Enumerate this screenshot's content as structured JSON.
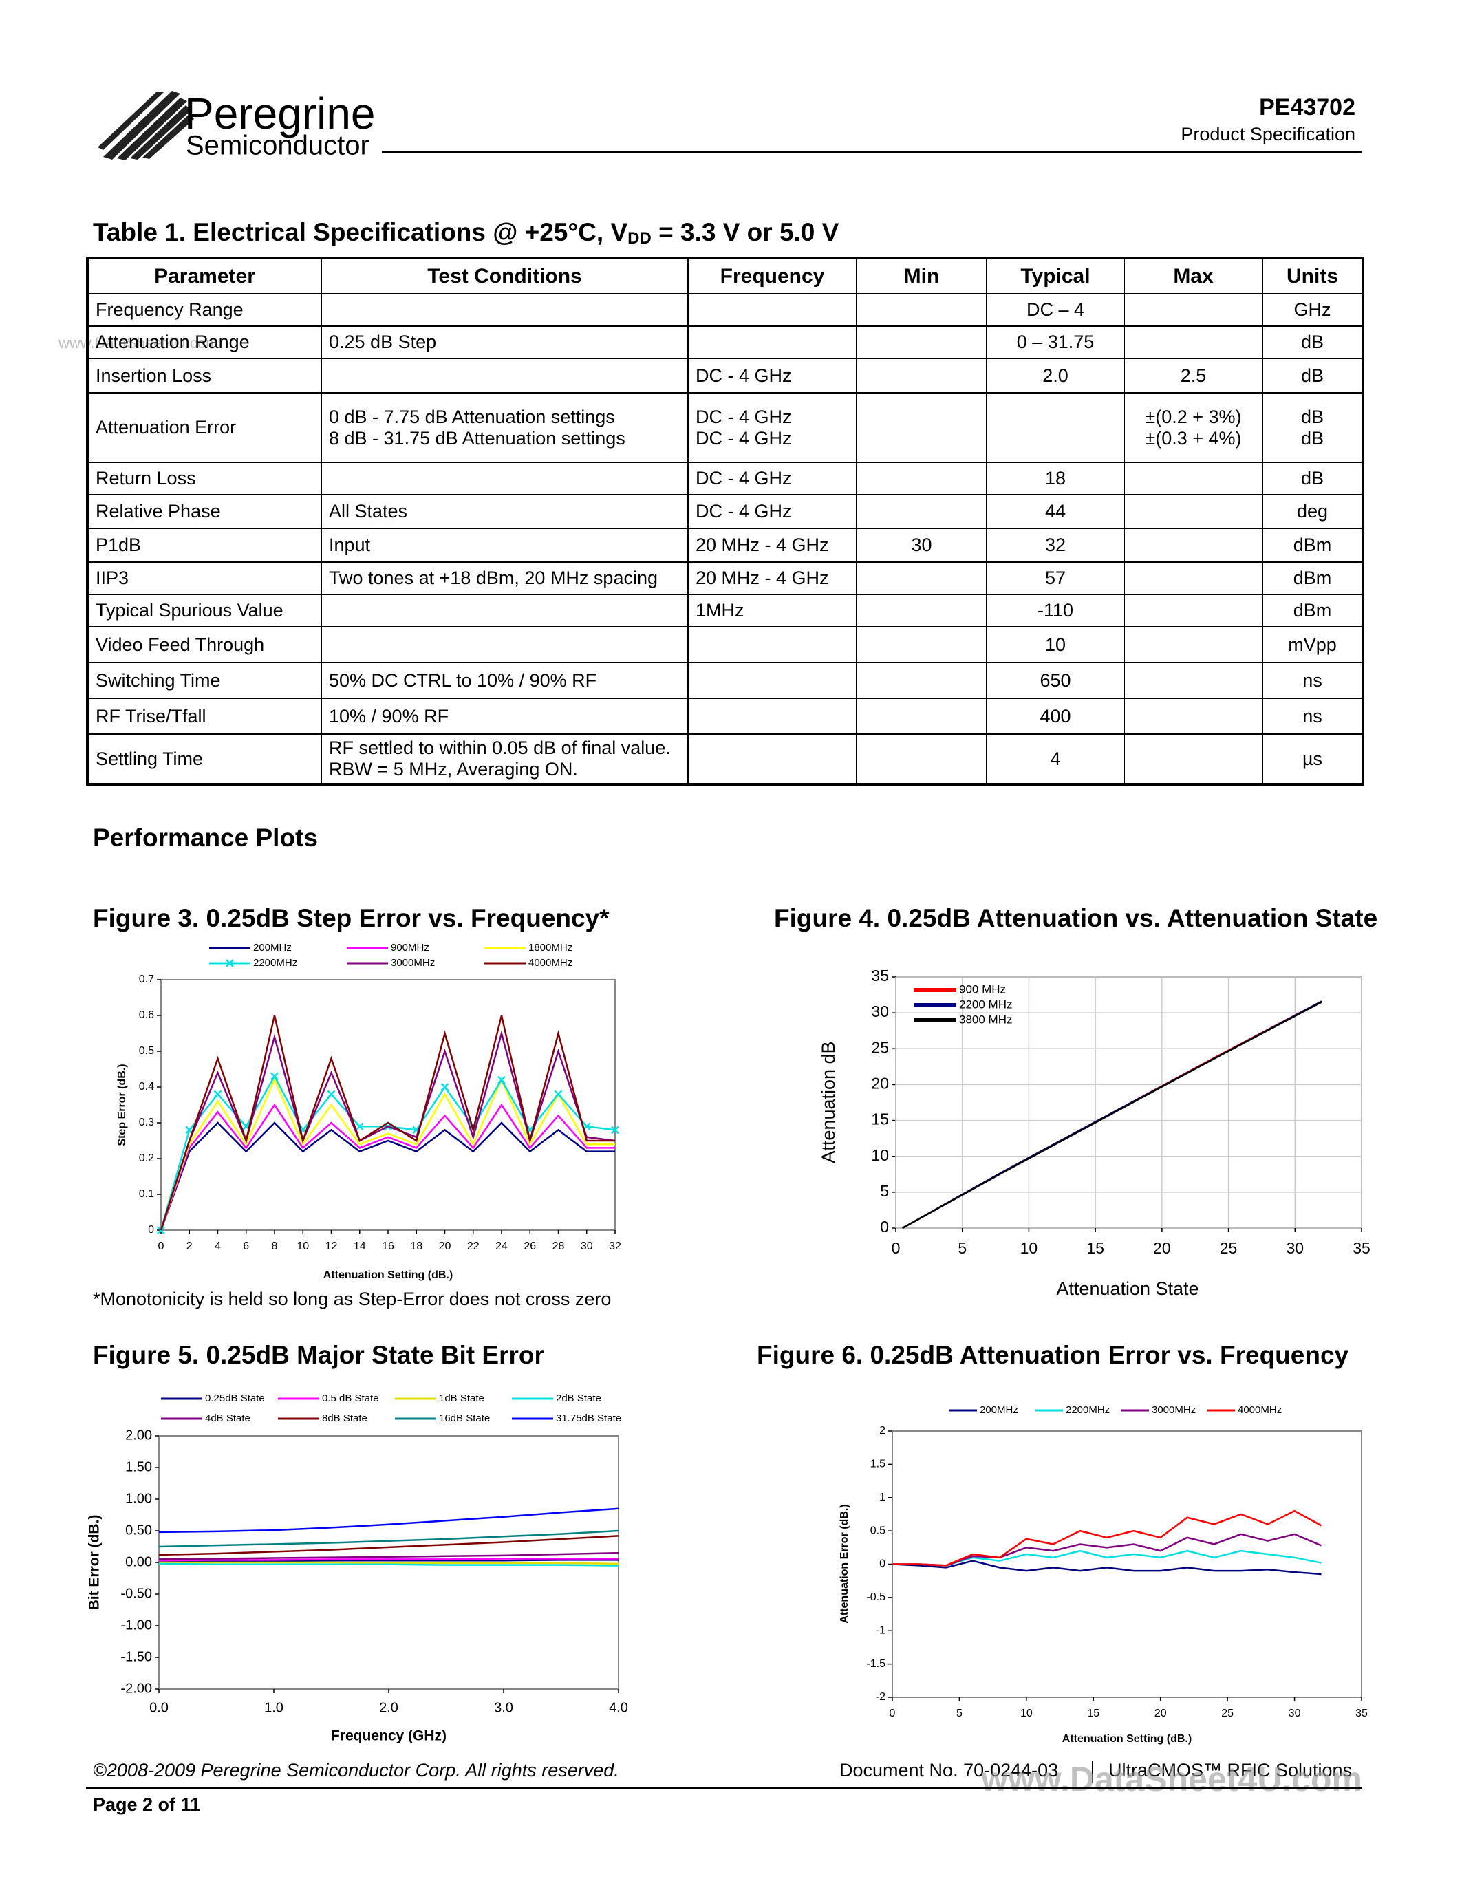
{
  "header": {
    "company": "Peregrine",
    "division": "Semiconductor",
    "part": "PE43702",
    "doc_type": "Product Specification"
  },
  "watermarks": [
    "www.DataSheet4U.com",
    "www.DataSheet4U.com"
  ],
  "table": {
    "title": "Table 1. Electrical Specifications @ +25°C, V",
    "title_sub": "DD",
    "title_end": " = 3.3 V or 5.0 V",
    "header": [
      "Parameter",
      "Test Conditions",
      "Frequency",
      "Min",
      "Typical",
      "Max",
      "Units"
    ],
    "rows": [
      [
        "Frequency Range",
        null,
        null,
        null,
        "DC – 4",
        null,
        "GHz"
      ],
      [
        "Attenuation Range",
        "0.25 dB Step",
        null,
        null,
        "0 – 31.75",
        null,
        "dB"
      ],
      [
        "Insertion Loss",
        null,
        "DC - 4 GHz",
        null,
        "2.0",
        "2.5",
        "dB"
      ],
      [
        "Attenuation Error",
        "0 dB - 7.75 dB Attenuation settings\n8 dB - 31.75 dB Attenuation settings",
        "DC - 4 GHz\nDC - 4 GHz",
        null,
        null,
        "±(0.2 + 3%)\n±(0.3 + 4%)",
        "dB\ndB"
      ],
      [
        "Return Loss",
        null,
        "DC - 4 GHz",
        null,
        "18",
        null,
        "dB"
      ],
      [
        "Relative Phase",
        "All States",
        "DC - 4 GHz",
        null,
        "44",
        null,
        "deg"
      ],
      [
        "P1dB",
        "Input",
        "20 MHz - 4 GHz",
        "30",
        "32",
        null,
        "dBm"
      ],
      [
        "IIP3",
        "Two tones at +18 dBm, 20 MHz spacing",
        "20 MHz - 4 GHz",
        null,
        "57",
        null,
        "dBm"
      ],
      [
        "Typical Spurious Value",
        null,
        "1MHz",
        null,
        "-110",
        null,
        "dBm"
      ],
      [
        "Video Feed Through",
        null,
        null,
        null,
        "10",
        null,
        "mVpp"
      ],
      [
        "Switching Time",
        "50% DC CTRL to 10% / 90% RF",
        null,
        null,
        "650",
        null,
        "ns"
      ],
      [
        "RF Trise/Tfall",
        "10% / 90% RF",
        null,
        null,
        "400",
        null,
        "ns"
      ],
      [
        "Settling Time",
        "RF settled to within 0.05 dB of final value.\nRBW = 5 MHz, Averaging ON.",
        null,
        null,
        "4",
        null,
        "µs"
      ]
    ]
  },
  "section": "Performance Plots",
  "chart_data": [
    {
      "type": "line",
      "title": "Figure 3. 0.25dB Step Error vs. Frequency*",
      "note": "*Monotonicity is held so long as Step-Error does not cross zero",
      "xlabel": "Attenuation Setting (dB.)",
      "ylabel": "Step Error (dB.)",
      "legend": "top",
      "x": [
        0,
        2,
        4,
        6,
        8,
        10,
        12,
        14,
        16,
        18,
        20,
        22,
        24,
        26,
        28,
        30,
        32
      ],
      "xlim": [
        0,
        32
      ],
      "ylim": [
        0,
        0.7
      ],
      "xticks": [
        0,
        2,
        4,
        6,
        8,
        10,
        12,
        14,
        16,
        18,
        20,
        22,
        24,
        26,
        28,
        30,
        32
      ],
      "yticks": [
        0,
        0.1,
        0.2,
        0.3,
        0.4,
        0.5,
        0.6,
        0.7
      ],
      "series": [
        {
          "name": "200MHz",
          "color": "#000080",
          "values": [
            0,
            0.22,
            0.3,
            0.22,
            0.3,
            0.22,
            0.28,
            0.22,
            0.25,
            0.22,
            0.28,
            0.22,
            0.3,
            0.22,
            0.28,
            0.22,
            0.22
          ]
        },
        {
          "name": "900MHz",
          "color": "#ff00ff",
          "values": [
            0,
            0.23,
            0.33,
            0.23,
            0.35,
            0.23,
            0.3,
            0.23,
            0.26,
            0.23,
            0.32,
            0.23,
            0.35,
            0.23,
            0.32,
            0.23,
            0.23
          ]
        },
        {
          "name": "1800MHz",
          "color": "#ffff00",
          "values": [
            0,
            0.24,
            0.36,
            0.24,
            0.42,
            0.24,
            0.35,
            0.24,
            0.27,
            0.24,
            0.38,
            0.24,
            0.42,
            0.24,
            0.38,
            0.24,
            0.24
          ]
        },
        {
          "name": "2200MHz",
          "color": "#00e0e0",
          "marker": "x",
          "values": [
            0,
            0.28,
            0.38,
            0.29,
            0.43,
            0.28,
            0.38,
            0.29,
            0.29,
            0.28,
            0.4,
            0.29,
            0.42,
            0.28,
            0.38,
            0.29,
            0.28
          ]
        },
        {
          "name": "3000MHz",
          "color": "#800080",
          "values": [
            0,
            0.25,
            0.44,
            0.25,
            0.54,
            0.25,
            0.44,
            0.25,
            0.29,
            0.26,
            0.5,
            0.26,
            0.55,
            0.25,
            0.5,
            0.26,
            0.25
          ]
        },
        {
          "name": "4000MHz",
          "color": "#800000",
          "values": [
            0,
            0.25,
            0.48,
            0.25,
            0.6,
            0.25,
            0.48,
            0.25,
            0.3,
            0.25,
            0.55,
            0.28,
            0.6,
            0.25,
            0.55,
            0.25,
            0.25
          ]
        }
      ]
    },
    {
      "type": "line",
      "title": "Figure 4. 0.25dB Attenuation vs. Attenuation State",
      "xlabel": "Attenuation  State",
      "ylabel": "Attenuation  dB",
      "legend": "upper left",
      "grid": true,
      "x": [
        0.5,
        8,
        16,
        24,
        32
      ],
      "xlim": [
        0,
        35
      ],
      "ylim": [
        0,
        35
      ],
      "xticks": [
        0,
        5,
        10,
        15,
        20,
        25,
        30,
        35
      ],
      "yticks": [
        0,
        5,
        10,
        15,
        20,
        25,
        30,
        35
      ],
      "series": [
        {
          "name": "900 MHz",
          "color": "#ff0000",
          "values": [
            0,
            7.8,
            15.8,
            23.8,
            31.6
          ]
        },
        {
          "name": "2200 MHz",
          "color": "#000080",
          "values": [
            0,
            7.8,
            15.8,
            23.7,
            31.6
          ]
        },
        {
          "name": "3800 MHz",
          "color": "#000000",
          "values": [
            0,
            7.7,
            15.7,
            23.7,
            31.5
          ]
        }
      ]
    },
    {
      "type": "line",
      "title": "Figure 5. 0.25dB Major State Bit Error",
      "xlabel": "Frequency (GHz)",
      "ylabel": "Bit Error (dB.)",
      "legend": "top",
      "x": [
        0,
        0.5,
        1,
        1.5,
        2,
        2.5,
        3,
        3.5,
        4
      ],
      "xlim": [
        0,
        4
      ],
      "ylim": [
        -2,
        2
      ],
      "xticks": [
        {
          "value": 0,
          "label": "0.0"
        },
        {
          "value": 1,
          "label": "1.0"
        },
        {
          "value": 2,
          "label": "2.0"
        },
        {
          "value": 3,
          "label": "3.0"
        },
        {
          "value": 4,
          "label": "4.0"
        }
      ],
      "yticks": [
        {
          "value": 2,
          "label": "2.00"
        },
        {
          "value": 1.5,
          "label": "1.50"
        },
        {
          "value": 1,
          "label": "1.00"
        },
        {
          "value": 0.5,
          "label": "0.50"
        },
        {
          "value": 0,
          "label": "0.00"
        },
        {
          "value": -0.5,
          "label": "-0.50"
        },
        {
          "value": -1,
          "label": "-1.00"
        },
        {
          "value": -1.5,
          "label": "-1.50"
        },
        {
          "value": -2,
          "label": "-2.00"
        }
      ],
      "series": [
        {
          "name": "0.25dB State",
          "color": "#000080",
          "values": [
            0.02,
            0.02,
            0.02,
            0.03,
            0.03,
            0.03,
            0.03,
            0.04,
            0.04
          ]
        },
        {
          "name": "0.5 dB State",
          "color": "#ff00ff",
          "values": [
            0.03,
            0.04,
            0.04,
            0.05,
            0.05,
            0.05,
            0.06,
            0.06,
            0.06
          ]
        },
        {
          "name": "1dB State",
          "color": "#e0e000",
          "values": [
            0,
            0,
            0,
            0,
            -0.01,
            -0.01,
            -0.01,
            -0.01,
            -0.02
          ]
        },
        {
          "name": "2dB State",
          "color": "#00e0e0",
          "values": [
            -0.02,
            -0.03,
            -0.03,
            -0.03,
            -0.03,
            -0.04,
            -0.04,
            -0.04,
            -0.05
          ]
        },
        {
          "name": "4dB State",
          "color": "#800080",
          "values": [
            0.05,
            0.06,
            0.07,
            0.08,
            0.09,
            0.1,
            0.11,
            0.13,
            0.15
          ]
        },
        {
          "name": "8dB State",
          "color": "#800000",
          "values": [
            0.12,
            0.14,
            0.17,
            0.2,
            0.24,
            0.28,
            0.32,
            0.37,
            0.42
          ]
        },
        {
          "name": "16dB State",
          "color": "#008080",
          "values": [
            0.25,
            0.27,
            0.29,
            0.31,
            0.34,
            0.37,
            0.41,
            0.45,
            0.5
          ]
        },
        {
          "name": "31.75dB State",
          "color": "#0000ff",
          "values": [
            0.48,
            0.49,
            0.51,
            0.55,
            0.6,
            0.66,
            0.72,
            0.79,
            0.85
          ]
        }
      ]
    },
    {
      "type": "line",
      "title": "Figure 6. 0.25dB Attenuation Error vs. Frequency",
      "xlabel": "Attenuation Setting (dB.)",
      "ylabel": "Attenuation Error (dB.)",
      "legend": "top",
      "x": [
        0,
        2,
        4,
        6,
        8,
        10,
        12,
        14,
        16,
        18,
        20,
        22,
        24,
        26,
        28,
        30,
        32
      ],
      "xlim": [
        0,
        35
      ],
      "ylim": [
        -2,
        2
      ],
      "xticks": [
        0,
        5,
        10,
        15,
        20,
        25,
        30,
        35
      ],
      "yticks": [
        2,
        1.5,
        1,
        0.5,
        0,
        -0.5,
        -1,
        -1.5,
        -2
      ],
      "series": [
        {
          "name": "200MHz",
          "color": "#000080",
          "values": [
            0,
            -0.02,
            -0.05,
            0.05,
            -0.05,
            -0.1,
            -0.05,
            -0.1,
            -0.05,
            -0.1,
            -0.1,
            -0.05,
            -0.1,
            -0.1,
            -0.08,
            -0.12,
            -0.15
          ]
        },
        {
          "name": "2200MHz",
          "color": "#00e0e0",
          "values": [
            0,
            0,
            -0.02,
            0.1,
            0.05,
            0.15,
            0.1,
            0.2,
            0.1,
            0.15,
            0.1,
            0.2,
            0.1,
            0.2,
            0.15,
            0.1,
            0.02
          ]
        },
        {
          "name": "3000MHz",
          "color": "#800080",
          "values": [
            0,
            0,
            -0.02,
            0.12,
            0.1,
            0.25,
            0.2,
            0.3,
            0.25,
            0.3,
            0.2,
            0.4,
            0.3,
            0.45,
            0.35,
            0.45,
            0.28
          ]
        },
        {
          "name": "4000MHz",
          "color": "#ff0000",
          "values": [
            0,
            0,
            -0.02,
            0.15,
            0.1,
            0.38,
            0.3,
            0.5,
            0.4,
            0.5,
            0.4,
            0.7,
            0.6,
            0.75,
            0.6,
            0.8,
            0.58
          ]
        }
      ]
    }
  ],
  "footer": {
    "copyright": "©2008-2009 Peregrine Semiconductor Corp.  All rights reserved.",
    "document_no": "Document No. 70-0244-03",
    "tagline": "UltraCMOS™ RFIC Solutions",
    "page": "Page  2 of 11"
  }
}
